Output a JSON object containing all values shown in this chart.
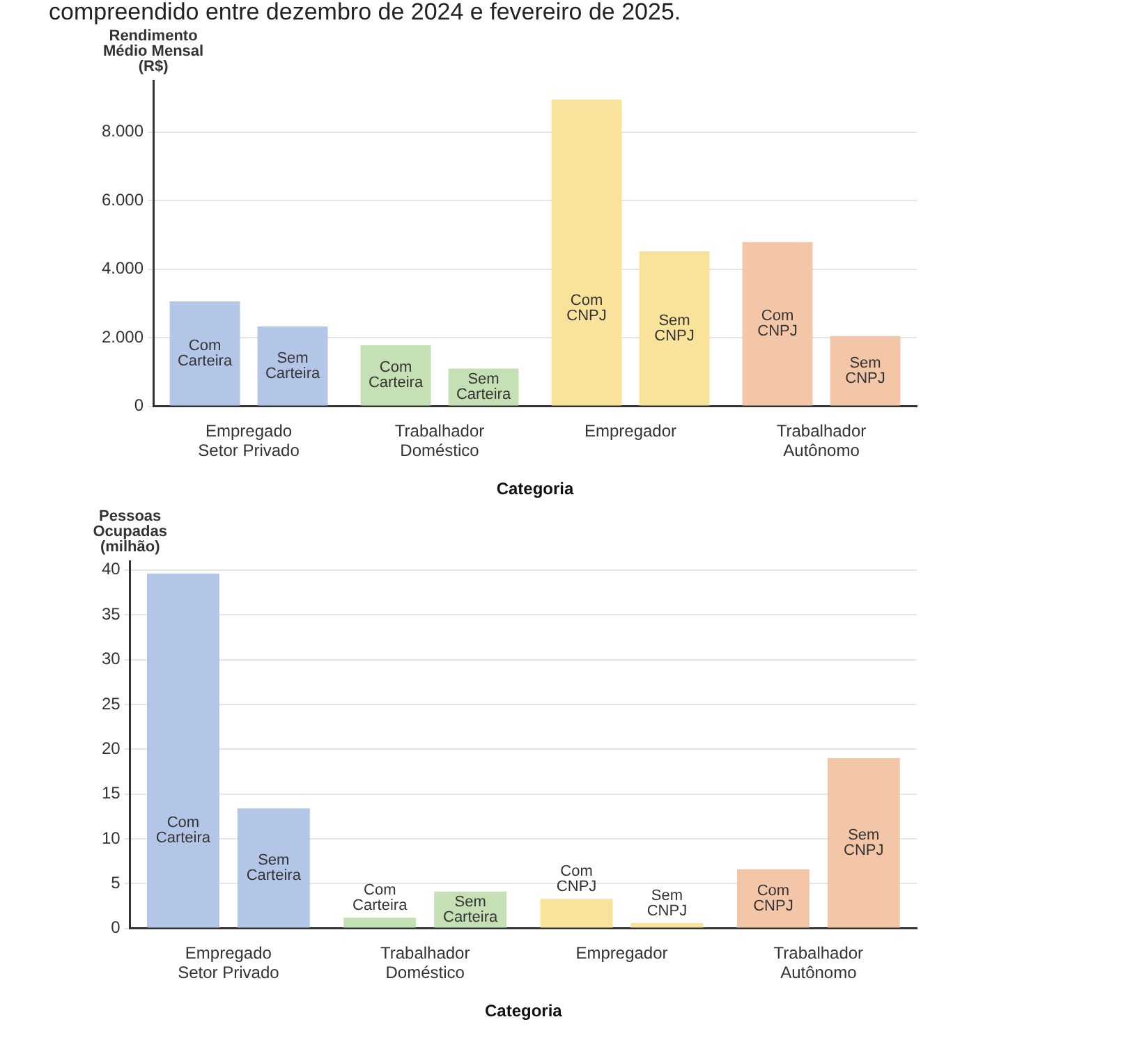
{
  "chart_data": [
    {
      "type": "bar",
      "title": "compreendido entre dezembro de 2024 e fevereiro de 2025.",
      "ylabel": "Rendimento\nMédio Mensal\n(R$)",
      "xlabel": "Categoria",
      "categories": [
        "Empregado Setor Privado",
        "Trabalhador Doméstico",
        "Empregador",
        "Trabalhador Autônomo"
      ],
      "series": [
        {
          "colors": [
            "#b4c6e7",
            "#c5e0b4",
            "#f9e29a",
            "#f4c6a8"
          ],
          "values": [
            3060,
            1780,
            8950,
            4790
          ]
        },
        {
          "colors": [
            "#b4c6e7",
            "#c5e0b4",
            "#f9e29a",
            "#f4c6a8"
          ],
          "values": [
            2330,
            1100,
            4520,
            2050
          ]
        }
      ],
      "ylim": [
        0,
        9500
      ],
      "yticks": [
        0,
        {
          "value": 2000,
          "label": "2.000"
        },
        {
          "value": 4000,
          "label": "4.000"
        },
        {
          "value": 6000,
          "label": "6.000"
        },
        {
          "value": 8000,
          "label": "8.000"
        }
      ],
      "grid": "y",
      "annotations": [
        "Com Carteira",
        "Sem Carteira",
        "Com Carteira",
        "Sem Carteira",
        "Com CNPJ",
        "Sem CNPJ",
        "Com CNPJ",
        "Sem CNPJ"
      ]
    },
    {
      "type": "bar",
      "ylabel": "Pessoas\nOcupadas\n(milhão)",
      "xlabel": "Categoria",
      "categories": [
        "Empregado Setor Privado",
        "Trabalhador Doméstico",
        "Empregador",
        "Trabalhador Autônomo"
      ],
      "series": [
        {
          "colors": [
            "#b4c6e7",
            "#c5e0b4",
            "#f9e29a",
            "#f4c6a8"
          ],
          "values": [
            39.6,
            1.2,
            3.3,
            6.6
          ]
        },
        {
          "colors": [
            "#b4c6e7",
            "#c5e0b4",
            "#f9e29a",
            "#f4c6a8"
          ],
          "values": [
            13.4,
            4.1,
            0.6,
            19.0
          ]
        }
      ],
      "ylim": [
        0,
        41
      ],
      "yticks": [
        0,
        5,
        10,
        15,
        20,
        25,
        30,
        35,
        40
      ],
      "grid": "y",
      "annotations": [
        "Com Carteira",
        "Sem Carteira",
        "Com Carteira",
        "Sem Carteira",
        "Com CNPJ",
        "Sem CNPJ",
        "Com CNPJ",
        "Sem CNPJ"
      ]
    }
  ]
}
